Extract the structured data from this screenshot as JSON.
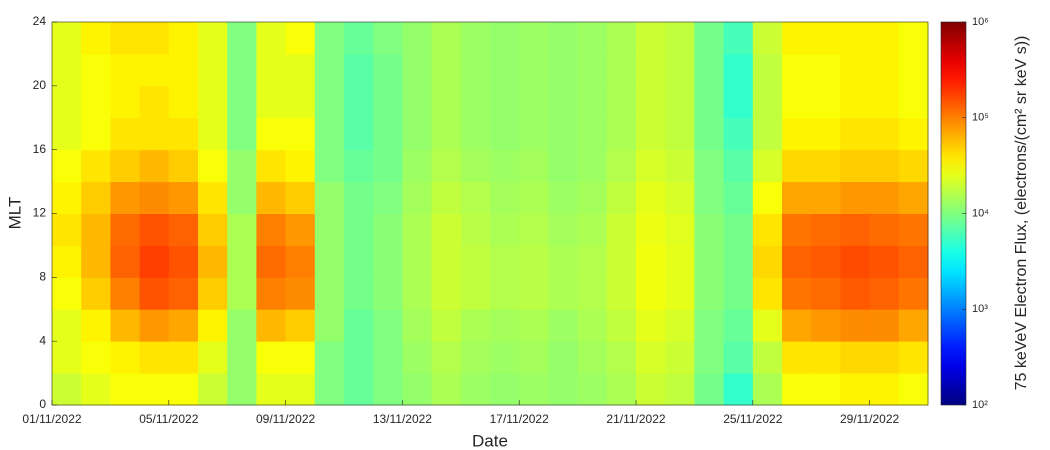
{
  "chart_data": {
    "type": "heatmap",
    "colormap": "jet",
    "zscale": "log",
    "xlabel": "Date",
    "ylabel": "MLT",
    "colorbar_label": "75 keVeV Electron Flux, (electrons/(cm² sr keV s))",
    "xlim": [
      "01/11/2022",
      "01/12/2022"
    ],
    "xticks": [
      "01/11/2022",
      "05/11/2022",
      "09/11/2022",
      "13/11/2022",
      "17/11/2022",
      "21/11/2022",
      "25/11/2022",
      "29/11/2022"
    ],
    "ylim": [
      0,
      24
    ],
    "yticks": [
      0,
      4,
      8,
      12,
      16,
      20,
      24
    ],
    "zlim": [
      100,
      1000000
    ],
    "zticks": [
      {
        "value": 100,
        "label": "10²"
      },
      {
        "value": 1000,
        "label": "10³"
      },
      {
        "value": 10000,
        "label": "10⁴"
      },
      {
        "value": 100000,
        "label": "10⁵"
      },
      {
        "value": 1000000,
        "label": "10⁶"
      }
    ],
    "x": [
      "01/11/2022",
      "02/11/2022",
      "03/11/2022",
      "04/11/2022",
      "05/11/2022",
      "06/11/2022",
      "07/11/2022",
      "08/11/2022",
      "09/11/2022",
      "10/11/2022",
      "11/11/2022",
      "12/11/2022",
      "13/11/2022",
      "14/11/2022",
      "15/11/2022",
      "16/11/2022",
      "17/11/2022",
      "18/11/2022",
      "19/11/2022",
      "20/11/2022",
      "21/11/2022",
      "22/11/2022",
      "23/11/2022",
      "24/11/2022",
      "25/11/2022",
      "26/11/2022",
      "27/11/2022",
      "28/11/2022",
      "29/11/2022",
      "30/11/2022"
    ],
    "y": [
      0,
      2,
      4,
      6,
      8,
      10,
      12,
      14,
      16,
      18,
      20,
      22
    ],
    "z": [
      [
        20000,
        25000,
        25000,
        30000,
        35000,
        40000,
        35000,
        30000,
        25000,
        25000,
        25000,
        25000
      ],
      [
        25000,
        30000,
        35000,
        50000,
        60000,
        60000,
        50000,
        40000,
        30000,
        30000,
        30000,
        35000
      ],
      [
        30000,
        35000,
        60000,
        100000,
        130000,
        120000,
        80000,
        50000,
        40000,
        35000,
        35000,
        40000
      ],
      [
        30000,
        40000,
        80000,
        150000,
        180000,
        150000,
        90000,
        60000,
        40000,
        40000,
        35000,
        40000
      ],
      [
        30000,
        40000,
        70000,
        130000,
        150000,
        130000,
        80000,
        50000,
        40000,
        35000,
        35000,
        35000
      ],
      [
        20000,
        25000,
        35000,
        50000,
        60000,
        50000,
        40000,
        30000,
        25000,
        25000,
        25000,
        25000
      ],
      [
        12000,
        12000,
        12000,
        15000,
        15000,
        15000,
        12000,
        12000,
        10000,
        10000,
        10000,
        10000
      ],
      [
        25000,
        30000,
        60000,
        100000,
        120000,
        100000,
        60000,
        40000,
        30000,
        25000,
        25000,
        25000
      ],
      [
        25000,
        30000,
        50000,
        90000,
        100000,
        80000,
        50000,
        35000,
        30000,
        25000,
        25000,
        30000
      ],
      [
        10000,
        10000,
        12000,
        12000,
        12000,
        12000,
        12000,
        10000,
        10000,
        10000,
        10000,
        10000
      ],
      [
        8000,
        8000,
        8000,
        9000,
        9000,
        9000,
        9000,
        8000,
        7000,
        7000,
        7000,
        8000
      ],
      [
        10000,
        10000,
        10000,
        11000,
        11000,
        11000,
        10000,
        9000,
        9000,
        9000,
        9000,
        10000
      ],
      [
        12000,
        13000,
        14000,
        15000,
        15000,
        15000,
        14000,
        13000,
        12000,
        12000,
        12000,
        12000
      ],
      [
        15000,
        16000,
        18000,
        20000,
        20000,
        20000,
        18000,
        16000,
        15000,
        15000,
        15000,
        15000
      ],
      [
        13000,
        14000,
        15000,
        18000,
        18000,
        17000,
        16000,
        14000,
        13000,
        13000,
        13000,
        13000
      ],
      [
        12000,
        13000,
        14000,
        16000,
        16000,
        15000,
        14000,
        13000,
        12000,
        12000,
        12000,
        12000
      ],
      [
        13000,
        14000,
        15000,
        17000,
        17000,
        16000,
        15000,
        14000,
        13000,
        13000,
        13000,
        13000
      ],
      [
        12000,
        12000,
        13000,
        15000,
        15000,
        14000,
        13000,
        12000,
        12000,
        12000,
        12000,
        12000
      ],
      [
        13000,
        14000,
        15000,
        16000,
        16000,
        15000,
        14000,
        13000,
        13000,
        13000,
        13000,
        13000
      ],
      [
        15000,
        16000,
        18000,
        20000,
        20000,
        20000,
        18000,
        16000,
        15000,
        15000,
        15000,
        15000
      ],
      [
        20000,
        22000,
        25000,
        28000,
        28000,
        27000,
        25000,
        22000,
        20000,
        20000,
        20000,
        20000
      ],
      [
        18000,
        20000,
        22000,
        25000,
        25000,
        24000,
        22000,
        20000,
        18000,
        18000,
        18000,
        18000
      ],
      [
        9000,
        10000,
        10000,
        11000,
        11000,
        11000,
        10000,
        10000,
        9000,
        9000,
        9000,
        9000
      ],
      [
        5000,
        7000,
        8000,
        9000,
        9000,
        9000,
        8000,
        7000,
        6000,
        5000,
        5000,
        6000
      ],
      [
        15000,
        18000,
        25000,
        40000,
        45000,
        40000,
        30000,
        22000,
        18000,
        18000,
        18000,
        20000
      ],
      [
        30000,
        40000,
        70000,
        110000,
        130000,
        110000,
        70000,
        45000,
        35000,
        30000,
        30000,
        35000
      ],
      [
        30000,
        40000,
        80000,
        120000,
        140000,
        120000,
        70000,
        45000,
        35000,
        30000,
        30000,
        35000
      ],
      [
        35000,
        45000,
        90000,
        140000,
        160000,
        130000,
        80000,
        50000,
        40000,
        35000,
        35000,
        35000
      ],
      [
        35000,
        45000,
        90000,
        130000,
        150000,
        120000,
        80000,
        50000,
        40000,
        35000,
        35000,
        35000
      ],
      [
        30000,
        40000,
        70000,
        110000,
        130000,
        110000,
        70000,
        45000,
        35000,
        30000,
        30000,
        30000
      ]
    ]
  }
}
